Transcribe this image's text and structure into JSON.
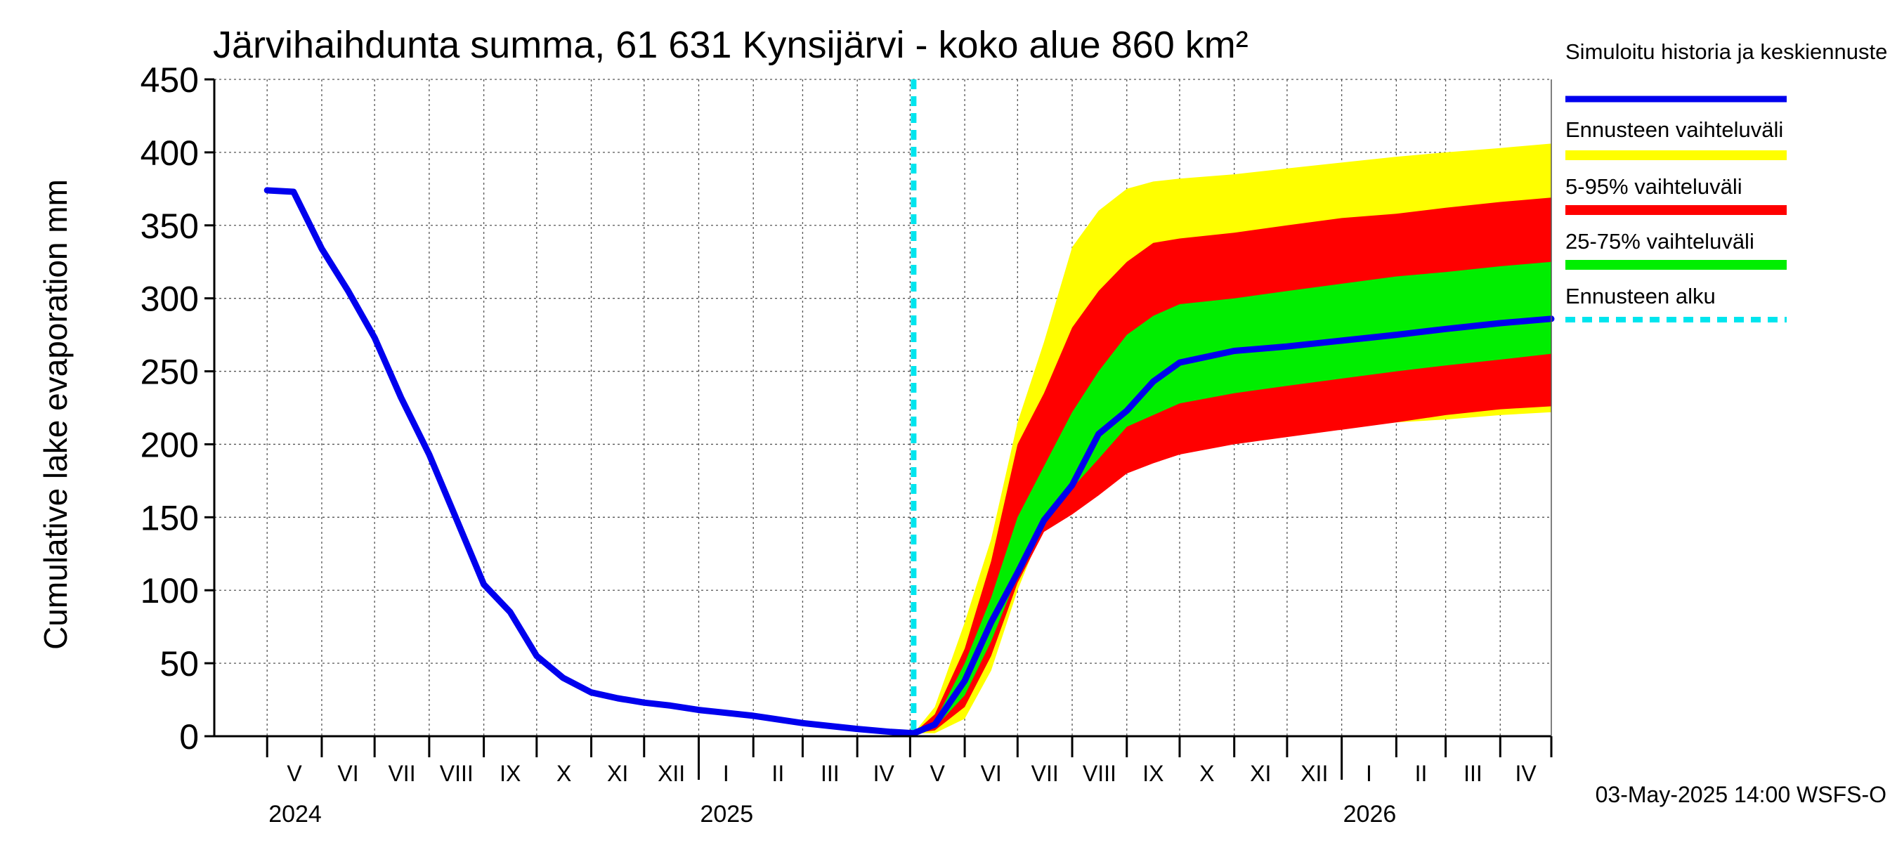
{
  "chart_data": {
    "type": "area",
    "title": "Järvihaihdunta summa, 61 631 Kynsijärvi - koko alue 860 km²",
    "ylabel": "Cumulative lake evaporation   mm",
    "xlabel": "",
    "ylim": [
      0,
      450
    ],
    "y_ticks": [
      0,
      50,
      100,
      150,
      200,
      250,
      300,
      350,
      400,
      450
    ],
    "x_range": [
      "2024-04-01",
      "2026-04-30"
    ],
    "grid": true,
    "legend_position": "right",
    "forecast_start": "2025-05-03",
    "months": [
      {
        "label": "V",
        "start": "2024-05-01"
      },
      {
        "label": "VI",
        "start": "2024-06-01"
      },
      {
        "label": "VII",
        "start": "2024-07-01"
      },
      {
        "label": "VIII",
        "start": "2024-08-01"
      },
      {
        "label": "IX",
        "start": "2024-09-01"
      },
      {
        "label": "X",
        "start": "2024-10-01"
      },
      {
        "label": "XI",
        "start": "2024-11-01"
      },
      {
        "label": "XII",
        "start": "2024-12-01"
      },
      {
        "label": "I",
        "start": "2025-01-01"
      },
      {
        "label": "II",
        "start": "2025-02-01"
      },
      {
        "label": "III",
        "start": "2025-03-01"
      },
      {
        "label": "IV",
        "start": "2025-04-01"
      },
      {
        "label": "V",
        "start": "2025-05-01"
      },
      {
        "label": "VI",
        "start": "2025-06-01"
      },
      {
        "label": "VII",
        "start": "2025-07-01"
      },
      {
        "label": "VIII",
        "start": "2025-08-01"
      },
      {
        "label": "IX",
        "start": "2025-09-01"
      },
      {
        "label": "X",
        "start": "2025-10-01"
      },
      {
        "label": "XI",
        "start": "2025-11-01"
      },
      {
        "label": "XII",
        "start": "2025-12-01"
      },
      {
        "label": "I",
        "start": "2026-01-01"
      },
      {
        "label": "II",
        "start": "2026-02-01"
      },
      {
        "label": "III",
        "start": "2026-03-01"
      },
      {
        "label": "IV",
        "start": "2026-04-01"
      }
    ],
    "years": [
      {
        "label": "2024",
        "start": "2024-05-01"
      },
      {
        "label": "2025",
        "start": "2025-01-01"
      },
      {
        "label": "2026",
        "start": "2026-01-01"
      }
    ],
    "series": [
      {
        "name": "Simuloitu historia ja keskiennuste",
        "color": "#0000ee",
        "x": [
          "2024-05-01",
          "2024-05-16",
          "2024-06-01",
          "2024-06-16",
          "2024-07-01",
          "2024-07-16",
          "2024-08-01",
          "2024-08-16",
          "2024-09-01",
          "2024-09-16",
          "2024-10-01",
          "2024-10-16",
          "2024-11-01",
          "2024-11-16",
          "2024-12-01",
          "2024-12-16",
          "2025-01-01",
          "2025-02-01",
          "2025-03-01",
          "2025-04-01",
          "2025-04-20",
          "2025-05-03",
          "2025-05-15",
          "2025-06-01",
          "2025-06-16",
          "2025-07-01",
          "2025-07-16",
          "2025-08-01",
          "2025-08-16",
          "2025-09-01",
          "2025-09-16",
          "2025-10-01",
          "2025-11-01",
          "2025-12-01",
          "2026-01-01",
          "2026-02-01",
          "2026-03-01",
          "2026-04-01",
          "2026-04-30"
        ],
        "values": [
          374,
          373,
          334,
          305,
          273,
          232,
          193,
          150,
          104,
          85,
          55,
          40,
          30,
          26,
          23,
          21,
          18,
          14,
          9,
          5,
          3,
          2,
          8,
          38,
          78,
          112,
          148,
          172,
          207,
          223,
          243,
          256,
          264,
          267,
          271,
          275,
          279,
          283,
          286
        ]
      }
    ],
    "bands": [
      {
        "name": "Ennusteen vaihteluväli",
        "color": "#ffff00",
        "x": [
          "2025-05-03",
          "2025-05-15",
          "2025-06-01",
          "2025-06-16",
          "2025-07-01",
          "2025-07-16",
          "2025-08-01",
          "2025-08-16",
          "2025-09-01",
          "2025-09-16",
          "2025-10-01",
          "2025-11-01",
          "2025-12-01",
          "2026-01-01",
          "2026-02-01",
          "2026-03-01",
          "2026-04-01",
          "2026-04-30"
        ],
        "upper": [
          2,
          20,
          78,
          135,
          215,
          270,
          335,
          360,
          375,
          380,
          382,
          385,
          389,
          393,
          397,
          400,
          403,
          406
        ],
        "lower": [
          2,
          2,
          12,
          45,
          100,
          145,
          163,
          182,
          192,
          196,
          200,
          205,
          209,
          212,
          215,
          217,
          220,
          222
        ]
      },
      {
        "name": "5-95% vaihteluväli",
        "color": "#ff0000",
        "x": [
          "2025-05-03",
          "2025-05-15",
          "2025-06-01",
          "2025-06-16",
          "2025-07-01",
          "2025-07-16",
          "2025-08-01",
          "2025-08-16",
          "2025-09-01",
          "2025-09-16",
          "2025-10-01",
          "2025-11-01",
          "2025-12-01",
          "2026-01-01",
          "2026-02-01",
          "2026-03-01",
          "2026-04-01",
          "2026-04-30"
        ],
        "upper": [
          2,
          15,
          60,
          120,
          200,
          235,
          280,
          305,
          325,
          338,
          341,
          345,
          350,
          355,
          358,
          362,
          366,
          369
        ],
        "lower": [
          2,
          4,
          20,
          55,
          105,
          140,
          152,
          165,
          180,
          187,
          193,
          200,
          205,
          210,
          215,
          220,
          224,
          226
        ]
      },
      {
        "name": "25-75% vaihteluväli",
        "color": "#00ee00",
        "x": [
          "2025-05-03",
          "2025-05-15",
          "2025-06-01",
          "2025-06-16",
          "2025-07-01",
          "2025-07-16",
          "2025-08-01",
          "2025-08-16",
          "2025-09-01",
          "2025-09-16",
          "2025-10-01",
          "2025-11-01",
          "2025-12-01",
          "2026-01-01",
          "2026-02-01",
          "2026-03-01",
          "2026-04-01",
          "2026-04-30"
        ],
        "upper": [
          2,
          10,
          50,
          95,
          150,
          185,
          222,
          250,
          275,
          288,
          296,
          300,
          305,
          310,
          315,
          318,
          322,
          325
        ],
        "lower": [
          2,
          6,
          28,
          65,
          110,
          150,
          170,
          190,
          212,
          220,
          228,
          235,
          240,
          245,
          250,
          254,
          258,
          262
        ]
      }
    ],
    "forecast_line": {
      "name": "Ennusteen alku",
      "color": "#00e5ee"
    }
  },
  "legend": [
    {
      "label": "Simuloitu historia ja keskiennuste",
      "color": "#0000ee",
      "style": "solid"
    },
    {
      "label": "Ennusteen vaihteluväli",
      "color": "#ffff00",
      "style": "solid"
    },
    {
      "label": "5-95% vaihteluväli",
      "color": "#ff0000",
      "style": "solid"
    },
    {
      "label": "25-75% vaihteluväli",
      "color": "#00ee00",
      "style": "solid"
    },
    {
      "label": "Ennusteen alku",
      "color": "#00e5ee",
      "style": "dashed"
    }
  ],
  "footer": "03-May-2025 14:00 WSFS-O"
}
